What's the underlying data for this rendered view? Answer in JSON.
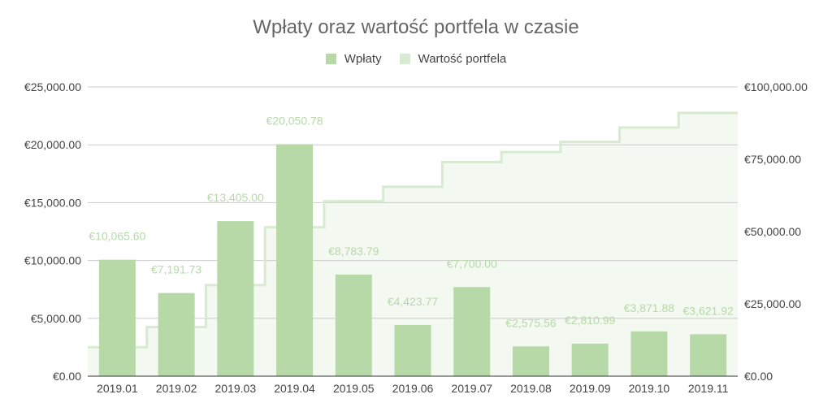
{
  "chart_data": {
    "type": "bar",
    "title": "Wpłaty oraz wartość portfela w czasie",
    "categories": [
      "2019.01",
      "2019.02",
      "2019.03",
      "2019.04",
      "2019.05",
      "2019.06",
      "2019.07",
      "2019.08",
      "2019.09",
      "2019.10",
      "2019.11"
    ],
    "series": [
      {
        "name": "Wpłaty",
        "type": "bar",
        "axis": "left",
        "color": "#b7d9a8",
        "values": [
          10065.6,
          7191.73,
          13405.0,
          20050.78,
          8783.79,
          4423.77,
          7700.0,
          2575.56,
          2810.99,
          3871.88,
          3621.92
        ],
        "data_labels": [
          "€10,065.60",
          "€7,191.73",
          "€13,405.00",
          "€20,050.78",
          "€8,783.79",
          "€4,423.77",
          "€7,700.00",
          "€2,575.56",
          "€2,810.99",
          "€3,871.88",
          "€3,621.92"
        ]
      },
      {
        "name": "Wartość portfela",
        "type": "stepped-area",
        "axis": "right",
        "color": "#d9ead3",
        "values": [
          10000,
          17000,
          31500,
          51500,
          60500,
          65500,
          74000,
          77500,
          81000,
          86000,
          91000
        ]
      }
    ],
    "left_axis": {
      "ylim": [
        0,
        25000
      ],
      "ticks": [
        "€0.00",
        "€5,000.00",
        "€10,000.00",
        "€15,000.00",
        "€20,000.00",
        "€25,000.00"
      ]
    },
    "right_axis": {
      "ylim": [
        0,
        100000
      ],
      "ticks": [
        "€0.00",
        "€25,000.00",
        "€50,000.00",
        "€75,000.00",
        "€100,000.00"
      ]
    },
    "grid": true,
    "legend_position": "top"
  }
}
